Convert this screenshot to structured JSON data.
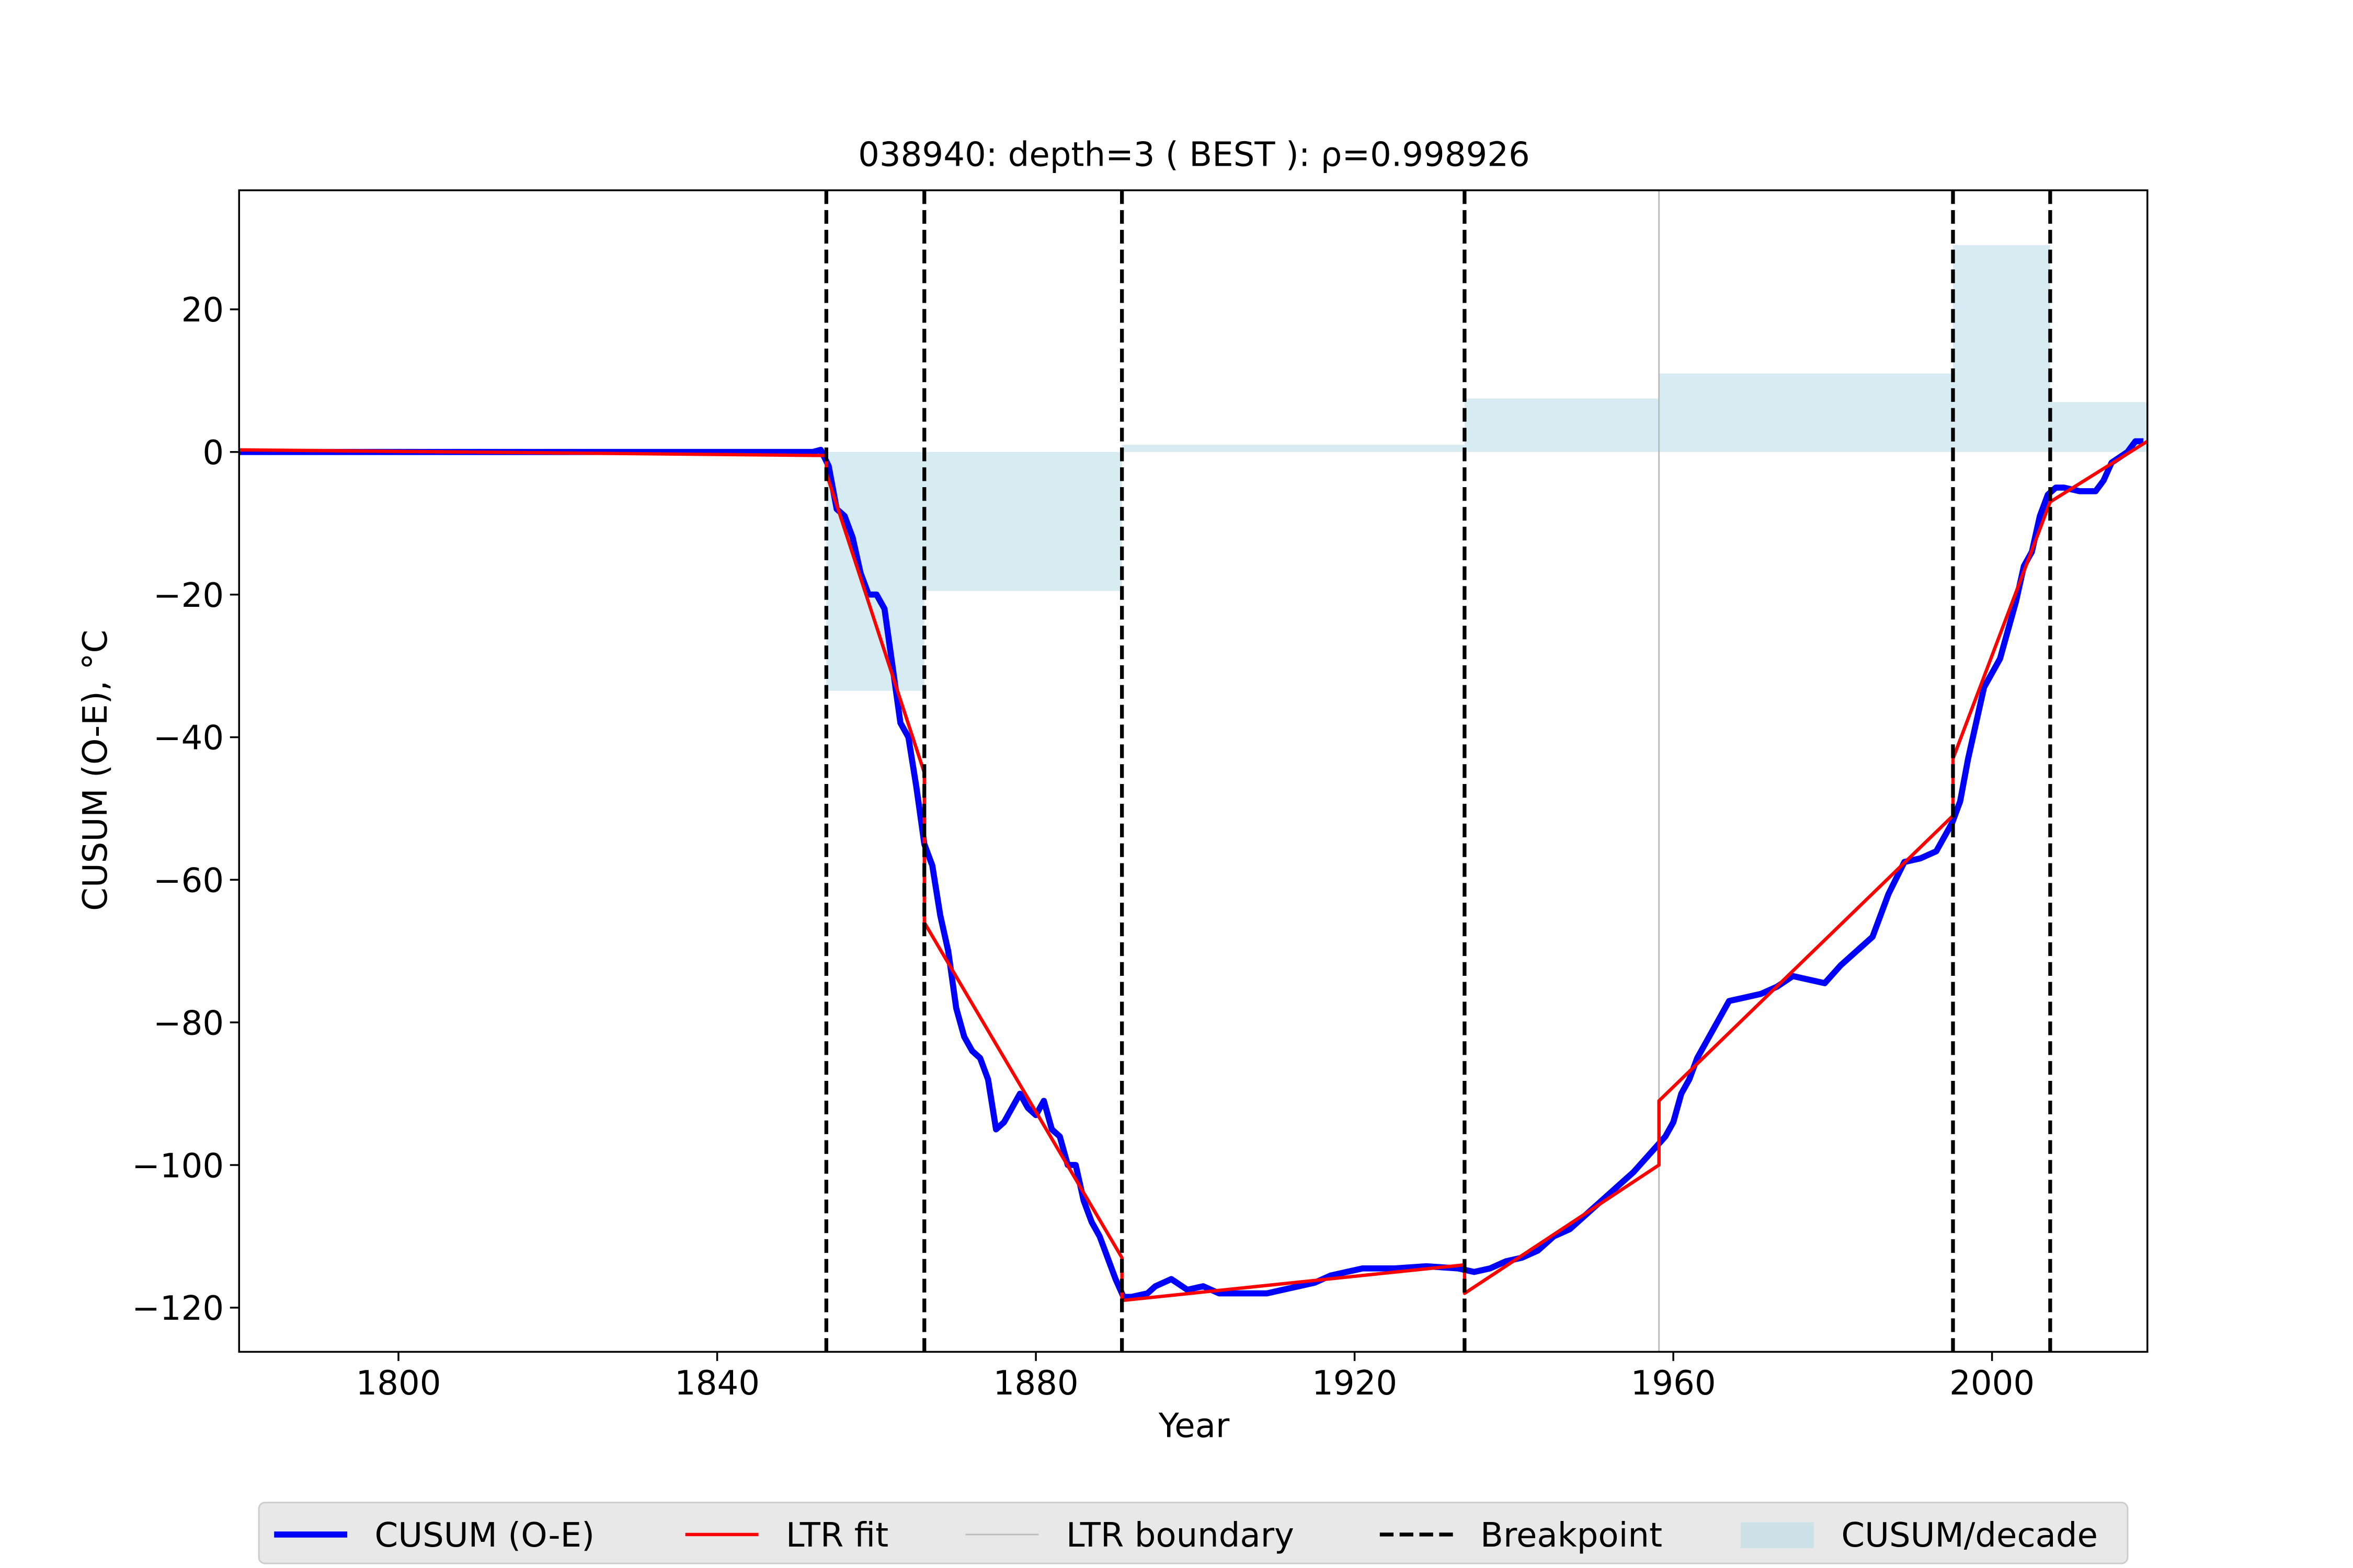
{
  "chart_data": {
    "type": "line",
    "title": "038940: depth=3 ( BEST ): ρ=0.998926",
    "xlabel": "Year",
    "ylabel": "CUSUM (O-E), °C",
    "xlim": [
      1780,
      2019.5
    ],
    "ylim": [
      -126.2,
      36.7
    ],
    "xticks": [
      1800,
      1840,
      1880,
      1920,
      1960,
      2000
    ],
    "yticks": [
      {
        "value": -120,
        "label": "−120"
      },
      {
        "value": -100,
        "label": "−100"
      },
      {
        "value": -80,
        "label": "−80"
      },
      {
        "value": -60,
        "label": "−60"
      },
      {
        "value": -40,
        "label": "−40"
      },
      {
        "value": -20,
        "label": "−20"
      },
      0,
      20
    ],
    "legend": "lower center",
    "decade": {
      "name": "CUSUM/decade",
      "color": "#add8e6",
      "bins": [
        1853.7,
        1866,
        1890.8,
        1933.8,
        1958.2,
        1995.1,
        2007.3,
        2019.5
      ],
      "values": [
        -33.5,
        -19.5,
        1,
        7.5,
        11,
        29,
        7
      ]
    },
    "series": [
      {
        "name": "CUSUM (O-E)",
        "color": "#0000ff",
        "x": [
          1780,
          1852,
          1853,
          1854,
          1855,
          1856,
          1857,
          1858,
          1859,
          1860,
          1861,
          1862,
          1863,
          1864,
          1865,
          1866,
          1867,
          1868,
          1869,
          1870,
          1871,
          1872,
          1873,
          1874,
          1875,
          1876,
          1877,
          1878,
          1879,
          1880,
          1881,
          1882,
          1883,
          1884,
          1885,
          1886,
          1887,
          1888,
          1889,
          1890,
          1891,
          1892,
          1894,
          1895,
          1897,
          1899,
          1901,
          1903,
          1905,
          1907,
          1909,
          1911,
          1913,
          1915,
          1917,
          1919,
          1921,
          1925,
          1929,
          1933,
          1935,
          1937,
          1939,
          1941,
          1943,
          1945,
          1947,
          1949,
          1951,
          1953,
          1955,
          1957,
          1959,
          1960,
          1961,
          1962,
          1963,
          1964,
          1965,
          1967,
          1969,
          1971,
          1973,
          1975,
          1977,
          1979,
          1981,
          1983,
          1985,
          1987,
          1989,
          1991,
          1993,
          1995,
          1996,
          1997,
          1998,
          1999,
          2000,
          2001,
          2002,
          2003,
          2004,
          2005,
          2006,
          2007,
          2008,
          2009,
          2011,
          2013,
          2014,
          2015,
          2017,
          2018,
          2019
        ],
        "values": [
          0,
          0,
          0.3,
          -2,
          -8,
          -9,
          -12,
          -17,
          -20,
          -20,
          -22,
          -30,
          -38,
          -40,
          -47,
          -55,
          -58,
          -65,
          -70,
          -78,
          -82,
          -84,
          -85,
          -88,
          -95,
          -94,
          -92,
          -90,
          -92,
          -93,
          -91,
          -95,
          -96,
          -100,
          -100,
          -105,
          -108,
          -110,
          -113,
          -116,
          -118.5,
          -118.5,
          -118,
          -117,
          -116,
          -117.5,
          -117,
          -118,
          -118,
          -118,
          -118,
          -117.5,
          -117,
          -116.5,
          -115.5,
          -115,
          -114.5,
          -114.5,
          -114.2,
          -114.5,
          -115,
          -114.5,
          -113.5,
          -113,
          -112,
          -110,
          -109,
          -107,
          -105,
          -103,
          -101,
          -98.5,
          -96,
          -94,
          -90,
          -88,
          -85,
          -83,
          -81,
          -77,
          -76.5,
          -76,
          -75,
          -73.5,
          -74,
          -74.5,
          -72,
          -70,
          -68,
          -62,
          -57.5,
          -57,
          -56,
          -52,
          -49,
          -43,
          -38,
          -33,
          -31,
          -29,
          -25,
          -21,
          -16,
          -14,
          -9,
          -6,
          -5,
          -5,
          -5.5,
          -5.5,
          -4,
          -1.5,
          0,
          1.5,
          1.5
        ]
      },
      {
        "name": "LTR fit",
        "color": "#ff0000",
        "x": [
          1780,
          1853.7,
          1853.7,
          1866,
          1866,
          1890.8,
          1890.8,
          1933.8,
          1933.8,
          1958.2,
          1958.2,
          1995.1,
          1995.1,
          2007.3,
          2007.3,
          2019.5
        ],
        "values": [
          0.3,
          -0.5,
          -3,
          -45,
          -66,
          -113,
          -119,
          -114,
          -118,
          -100,
          -91,
          -51,
          -43,
          -7,
          -7,
          1.5
        ]
      }
    ],
    "boundaries": {
      "name": "LTR boundary",
      "color": "#bbbbbb",
      "x": [
        1958.2
      ]
    },
    "breakpoints": {
      "name": "Breakpoint",
      "color": "#000000",
      "x": [
        1853.7,
        1866,
        1890.8,
        1933.8,
        1995.1,
        2007.3
      ]
    }
  }
}
